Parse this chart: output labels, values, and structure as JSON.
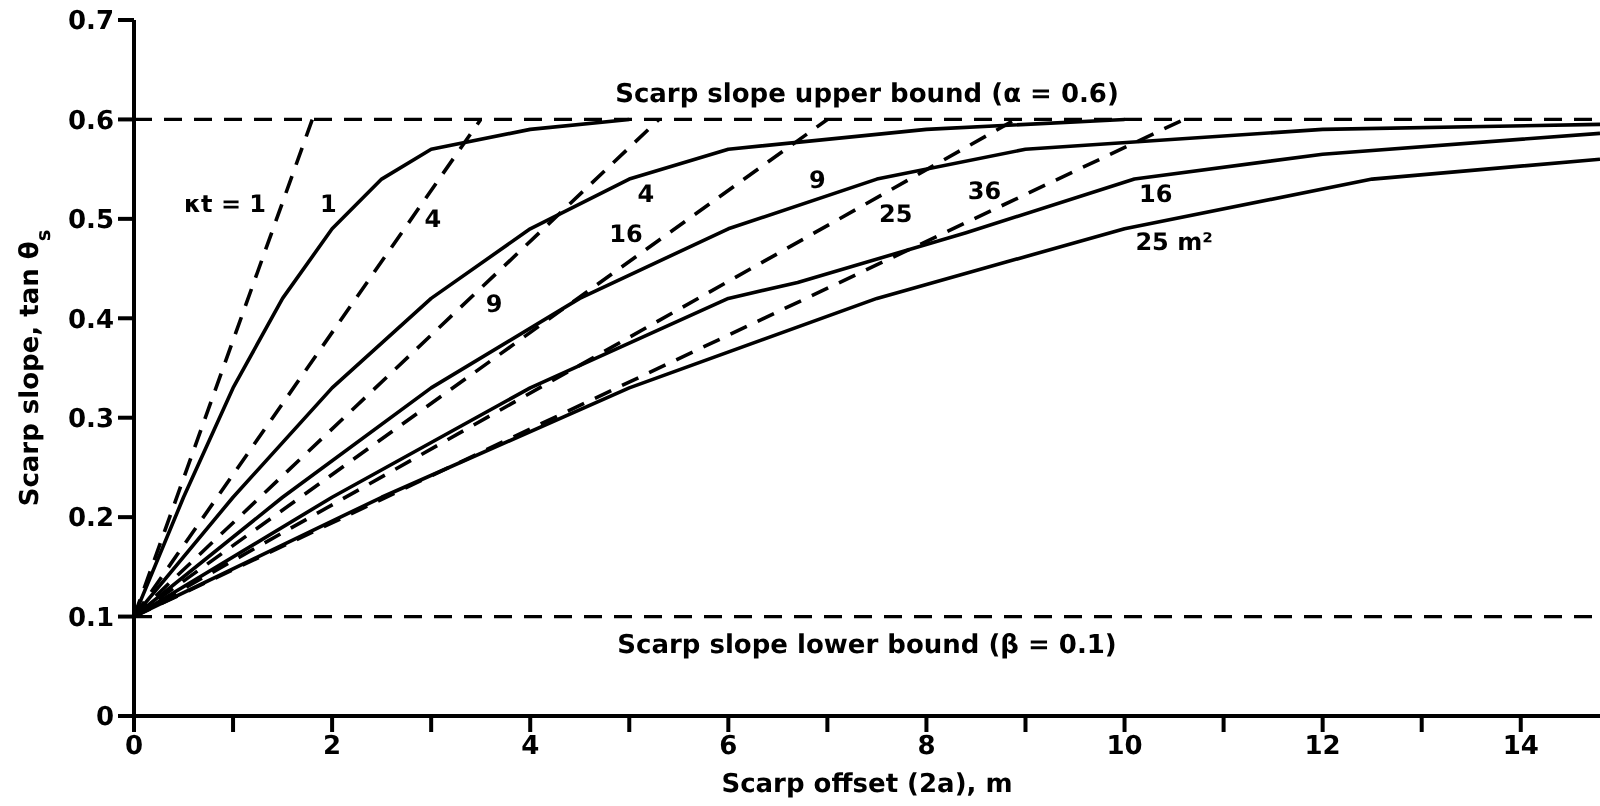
{
  "chart_data": {
    "type": "line",
    "xlabel": "Scarp offset (2a), m",
    "ylabel": "Scarp slope, tan θ$_{s}$",
    "xlim": [
      0,
      14.8
    ],
    "ylim": [
      0,
      0.7
    ],
    "xticks": [
      0,
      {
        "value": 1,
        "label": null
      },
      2,
      {
        "value": 3,
        "label": null
      },
      4,
      {
        "value": 5,
        "label": null
      },
      6,
      {
        "value": 7,
        "label": null
      },
      8,
      {
        "value": 9,
        "label": null
      },
      10,
      {
        "value": 11,
        "label": null
      },
      12,
      {
        "value": 13,
        "label": null
      },
      14
    ],
    "yticks": [
      0,
      0.1,
      0.2,
      0.3,
      0.4,
      0.5,
      0.6,
      0.7
    ],
    "grid": false,
    "marker": "none",
    "series": [
      {
        "name": "1",
        "color": "#000000",
        "line_style": "solid",
        "x": [
          0,
          0.5,
          1,
          1.5,
          2,
          2.5,
          3,
          4,
          5
        ],
        "values": [
          0.1,
          0.22,
          0.33,
          0.42,
          0.49,
          0.54,
          0.57,
          0.59,
          0.6
        ]
      },
      {
        "name": "4",
        "color": "#000000",
        "line_style": "solid",
        "x": [
          0,
          1,
          2,
          3,
          4,
          5,
          6,
          8,
          10
        ],
        "values": [
          0.1,
          0.22,
          0.33,
          0.42,
          0.49,
          0.54,
          0.57,
          0.59,
          0.6
        ]
      },
      {
        "name": "9",
        "color": "#000000",
        "line_style": "solid",
        "x": [
          0,
          1.5,
          3,
          4.5,
          6,
          7.5,
          9,
          12,
          14.8
        ],
        "values": [
          0.1,
          0.22,
          0.33,
          0.42,
          0.49,
          0.54,
          0.57,
          0.59,
          0.595
        ]
      },
      {
        "name": "16",
        "color": "#000000",
        "line_style": "solid",
        "x": [
          0,
          2,
          4,
          6,
          6.7,
          8.4,
          10.1,
          12,
          14.8
        ],
        "values": [
          0.1,
          0.22,
          0.33,
          0.42,
          0.436,
          0.486,
          0.54,
          0.565,
          0.586
        ]
      },
      {
        "name": "25 m²",
        "color": "#000000",
        "line_style": "solid",
        "x": [
          0,
          2.5,
          5,
          7.5,
          10,
          12.5,
          14.8
        ],
        "values": [
          0.1,
          0.22,
          0.33,
          0.42,
          0.49,
          0.54,
          0.56
        ]
      },
      {
        "name": "κt = 1",
        "color": "#000000",
        "line_style": "dashed",
        "x": [
          0,
          1.8
        ],
        "values": [
          0.1,
          0.6
        ]
      },
      {
        "name": "4",
        "color": "#000000",
        "line_style": "dashed",
        "x": [
          0,
          3.5
        ],
        "values": [
          0.1,
          0.6
        ]
      },
      {
        "name": "9",
        "color": "#000000",
        "line_style": "dashed",
        "x": [
          0,
          5.3
        ],
        "values": [
          0.1,
          0.6
        ]
      },
      {
        "name": "16",
        "color": "#000000",
        "line_style": "dashed",
        "x": [
          0,
          7
        ],
        "values": [
          0.1,
          0.6
        ]
      },
      {
        "name": "25",
        "color": "#000000",
        "line_style": "dashed",
        "x": [
          0,
          8.9
        ],
        "values": [
          0.1,
          0.6
        ]
      },
      {
        "name": "36",
        "color": "#000000",
        "line_style": "dashed",
        "x": [
          0,
          10.6
        ],
        "values": [
          0.1,
          0.6
        ]
      }
    ],
    "ref_lines": [
      {
        "axis": "y",
        "value": 0.6,
        "label": "Scarp slope upper bound (α = 0.6)",
        "color": "#000000",
        "line_style": "dashed"
      },
      {
        "axis": "y",
        "value": 0.1,
        "label": "Scarp slope lower bound (β = 0.1)",
        "color": "#000000",
        "line_style": "dashed"
      }
    ]
  }
}
